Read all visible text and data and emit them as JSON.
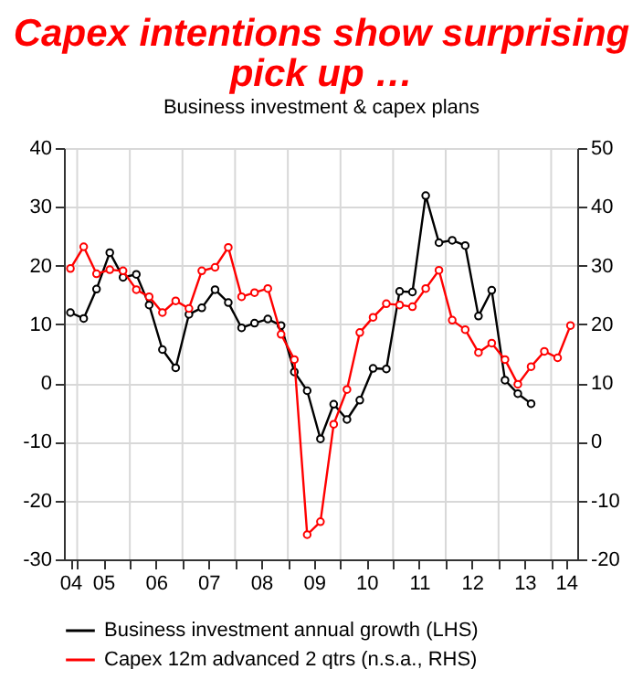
{
  "chart_data": {
    "type": "line",
    "title": "Capex intentions show surprising pick up …",
    "subtitle": "Business investment & capex plans",
    "xlim": [
      "2004-10-01",
      "2014-07-01"
    ],
    "xticks": [
      {
        "value": "2004-11-15",
        "label": "04"
      },
      {
        "value": "2005-07-01",
        "label": "05"
      },
      {
        "value": "2006-07-01",
        "label": "06"
      },
      {
        "value": "2007-07-01",
        "label": "07"
      },
      {
        "value": "2008-07-01",
        "label": "08"
      },
      {
        "value": "2009-07-01",
        "label": "09"
      },
      {
        "value": "2010-07-01",
        "label": "10"
      },
      {
        "value": "2011-07-01",
        "label": "11"
      },
      {
        "value": "2012-07-01",
        "label": "12"
      },
      {
        "value": "2013-07-01",
        "label": "13"
      },
      {
        "value": "2014-04-15",
        "label": "14"
      },
      {
        "value": "2005-01-01",
        "label": null
      },
      {
        "value": "2006-01-01",
        "label": null
      },
      {
        "value": "2007-01-01",
        "label": null
      },
      {
        "value": "2008-01-01",
        "label": null
      },
      {
        "value": "2009-01-01",
        "label": null
      },
      {
        "value": "2010-01-01",
        "label": null
      },
      {
        "value": "2011-01-01",
        "label": null
      },
      {
        "value": "2012-01-01",
        "label": null
      },
      {
        "value": "2013-01-01",
        "label": null
      },
      {
        "value": "2014-01-01",
        "label": null
      }
    ],
    "ylim": [
      -30,
      40
    ],
    "yticks": [
      -30,
      -20,
      -10,
      0,
      10,
      20,
      30,
      40
    ],
    "y2lim": [
      -20,
      50
    ],
    "y2ticks": [
      -20,
      -10,
      0,
      10,
      20,
      30,
      40,
      50
    ],
    "grid": true,
    "legend": "bottom",
    "marker": "circle",
    "series": [
      {
        "name": "Business investment annual growth (LHS)",
        "color": "#000000",
        "x": [
          "2004-11-15",
          "2005-02-15",
          "2005-05-15",
          "2005-08-15",
          "2005-11-15",
          "2006-02-15",
          "2006-05-15",
          "2006-08-15",
          "2006-11-15",
          "2007-02-15",
          "2007-05-15",
          "2007-08-15",
          "2007-11-15",
          "2008-02-15",
          "2008-05-15",
          "2008-08-15",
          "2008-11-15",
          "2009-02-15",
          "2009-05-15",
          "2009-08-15",
          "2009-11-15",
          "2010-02-15",
          "2010-05-15",
          "2010-08-15",
          "2010-11-15",
          "2011-02-15",
          "2011-05-15",
          "2011-08-15",
          "2011-11-15",
          "2012-02-15",
          "2012-05-15",
          "2012-08-15",
          "2012-11-15",
          "2013-02-15",
          "2013-05-15",
          "2013-08-15"
        ],
        "values": [
          12,
          11,
          16,
          22.2,
          18,
          18.5,
          13.3,
          5.7,
          2.6,
          11.7,
          12.8,
          15.9,
          13.7,
          9.4,
          10.2,
          10.9,
          9.8,
          1.9,
          -1.3,
          -9.5,
          -3.6,
          -6.2,
          -2.9,
          2.5,
          2.4,
          15.6,
          15.5,
          31.9,
          23.9,
          24.3,
          23.4,
          11.4,
          15.8,
          0.5,
          -1.8,
          -3.5
        ]
      },
      {
        "name": "Capex 12m advanced 2 qtrs  (n.s.a., RHS)",
        "color": "#ff0000",
        "axis": "y2",
        "x": [
          "2004-11-15",
          "2005-02-15",
          "2005-05-15",
          "2005-08-15",
          "2005-11-15",
          "2006-02-15",
          "2006-05-15",
          "2006-08-15",
          "2006-11-15",
          "2007-02-15",
          "2007-05-15",
          "2007-08-15",
          "2007-11-15",
          "2008-02-15",
          "2008-05-15",
          "2008-08-15",
          "2008-11-15",
          "2009-02-15",
          "2009-05-15",
          "2009-08-15",
          "2009-11-15",
          "2010-02-15",
          "2010-05-15",
          "2010-08-15",
          "2010-11-15",
          "2011-02-15",
          "2011-05-15",
          "2011-08-15",
          "2011-11-15",
          "2012-02-15",
          "2012-05-15",
          "2012-08-15",
          "2012-11-15",
          "2013-02-15",
          "2013-05-15",
          "2013-08-15",
          "2013-11-15",
          "2014-02-15",
          "2014-05-15"
        ],
        "values": [
          29.5,
          33.2,
          28.6,
          29.3,
          29.1,
          25.9,
          24.7,
          22,
          24,
          22.7,
          29.1,
          29.7,
          33.1,
          24.7,
          25.4,
          26.1,
          18.3,
          14,
          -15.8,
          -13.6,
          3,
          8.9,
          18.6,
          21.2,
          23.5,
          23.3,
          23,
          26.1,
          29.2,
          20.7,
          19.1,
          15.2,
          16.8,
          14,
          9.8,
          12.8,
          15.4,
          14.3,
          19.8
        ]
      }
    ]
  }
}
